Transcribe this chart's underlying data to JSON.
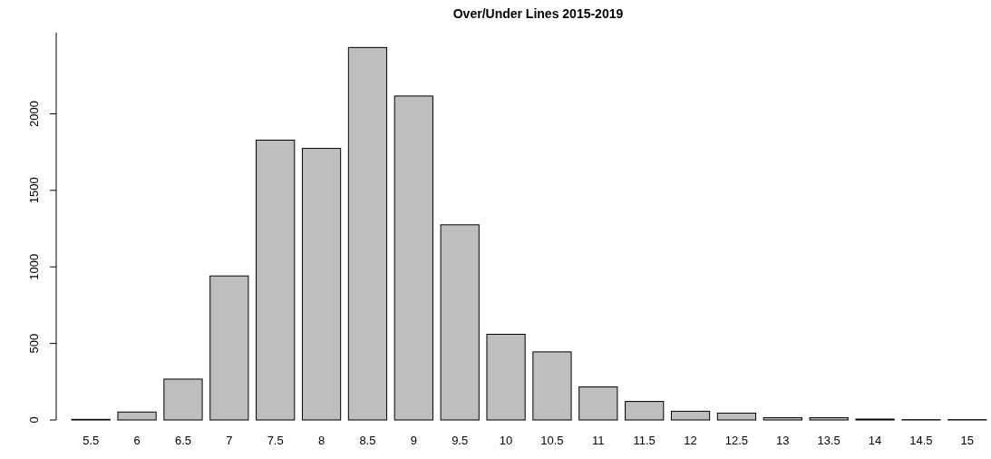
{
  "chart_data": {
    "type": "bar",
    "title": "Over/Under Lines 2015-2019",
    "categories": [
      "5.5",
      "6",
      "6.5",
      "7",
      "7.5",
      "8",
      "8.5",
      "9",
      "9.5",
      "10",
      "10.5",
      "11",
      "11.5",
      "12",
      "12.5",
      "13",
      "13.5",
      "14",
      "14.5",
      "15"
    ],
    "values": [
      4,
      52,
      267,
      941,
      1828,
      1774,
      2433,
      2116,
      1275,
      560,
      445,
      216,
      121,
      57,
      45,
      15,
      15,
      6,
      2,
      2
    ],
    "color": "#bebebe",
    "ylim": [
      0,
      2530
    ],
    "yticks": [
      0,
      500,
      1000,
      1500,
      2000
    ]
  }
}
